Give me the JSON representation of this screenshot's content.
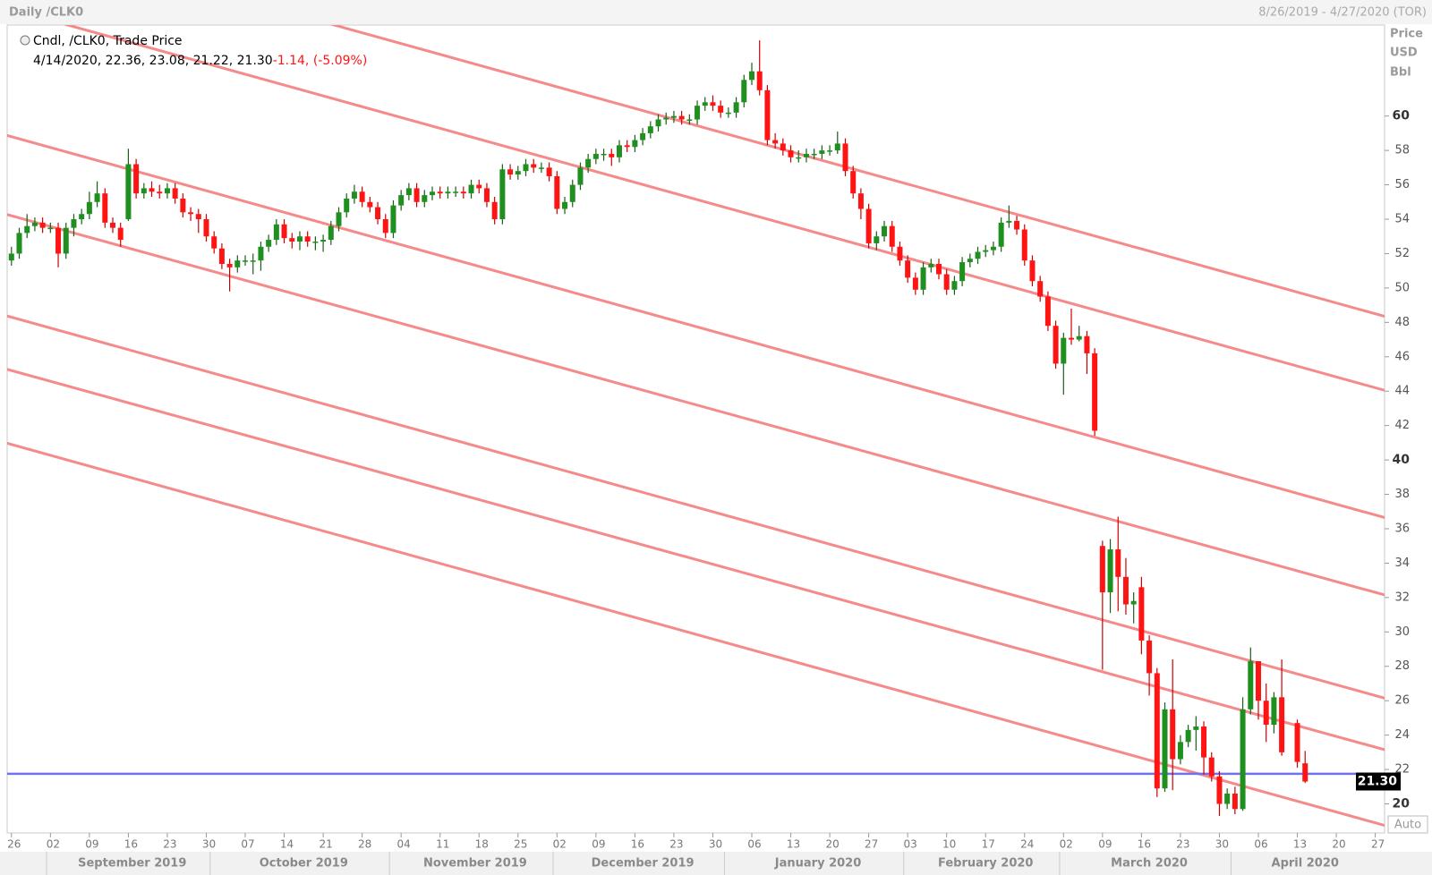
{
  "header": {
    "title": "Daily /CLK0",
    "range": "8/26/2019 - 4/27/2020 (TOR)"
  },
  "legend": {
    "title": "Cndl, /CLK0, Trade Price",
    "ohlc": "4/14/2020, 22.36, 23.08, 21.22, 21.30",
    "change": "-1.14, (-5.09%)"
  },
  "axis_label": [
    "Price",
    "USD",
    "Bbl"
  ],
  "auto_button": "Auto",
  "chart_data": {
    "type": "candlestick",
    "up_color": "#1f8f1f",
    "down_color": "#ff1414",
    "xlim": [
      "2019-08-26",
      "2020-04-27"
    ],
    "ylim": [
      18.31,
      65.29
    ],
    "yticks": [
      20,
      22,
      24,
      26,
      28,
      30,
      32,
      34,
      36,
      38,
      40,
      42,
      44,
      46,
      48,
      50,
      52,
      54,
      56,
      58,
      60
    ],
    "xticks": [
      {
        "value": "2019-08-26",
        "label": "26"
      },
      {
        "value": "2019-09-02",
        "label": "02"
      },
      {
        "value": "2019-09-09",
        "label": "09"
      },
      {
        "value": "2019-09-16",
        "label": "16"
      },
      {
        "value": "2019-09-23",
        "label": "23"
      },
      {
        "value": "2019-09-30",
        "label": "30"
      },
      {
        "value": "2019-10-07",
        "label": "07"
      },
      {
        "value": "2019-10-14",
        "label": "14"
      },
      {
        "value": "2019-10-21",
        "label": "21"
      },
      {
        "value": "2019-10-28",
        "label": "28"
      },
      {
        "value": "2019-11-04",
        "label": "04"
      },
      {
        "value": "2019-11-11",
        "label": "11"
      },
      {
        "value": "2019-11-18",
        "label": "18"
      },
      {
        "value": "2019-11-25",
        "label": "25"
      },
      {
        "value": "2019-12-02",
        "label": "02"
      },
      {
        "value": "2019-12-09",
        "label": "09"
      },
      {
        "value": "2019-12-16",
        "label": "16"
      },
      {
        "value": "2019-12-23",
        "label": "23"
      },
      {
        "value": "2019-12-30",
        "label": "30"
      },
      {
        "value": "2020-01-06",
        "label": "06"
      },
      {
        "value": "2020-01-13",
        "label": "13"
      },
      {
        "value": "2020-01-20",
        "label": "20"
      },
      {
        "value": "2020-01-27",
        "label": "27"
      },
      {
        "value": "2020-02-03",
        "label": "03"
      },
      {
        "value": "2020-02-10",
        "label": "10"
      },
      {
        "value": "2020-02-17",
        "label": "17"
      },
      {
        "value": "2020-02-24",
        "label": "24"
      },
      {
        "value": "2020-03-02",
        "label": "02"
      },
      {
        "value": "2020-03-09",
        "label": "09"
      },
      {
        "value": "2020-03-16",
        "label": "16"
      },
      {
        "value": "2020-03-23",
        "label": "23"
      },
      {
        "value": "2020-03-30",
        "label": "30"
      },
      {
        "value": "2020-04-06",
        "label": "06"
      },
      {
        "value": "2020-04-13",
        "label": "13"
      },
      {
        "value": "2020-04-20",
        "label": "20"
      },
      {
        "value": "2020-04-27",
        "label": "27"
      }
    ],
    "months": [
      {
        "value": "2019-09",
        "label": "September 2019"
      },
      {
        "value": "2019-10",
        "label": "October 2019"
      },
      {
        "value": "2019-11",
        "label": "November 2019"
      },
      {
        "value": "2019-12",
        "label": "December 2019"
      },
      {
        "value": "2020-01",
        "label": "January 2020"
      },
      {
        "value": "2020-02",
        "label": "February 2020"
      },
      {
        "value": "2020-03",
        "label": "March 2020"
      },
      {
        "value": "2020-04",
        "label": "April 2020"
      }
    ],
    "x": [
      "2019-08-26",
      "2019-08-27",
      "2019-08-28",
      "2019-08-29",
      "2019-08-30",
      "2019-09-02",
      "2019-09-03",
      "2019-09-04",
      "2019-09-05",
      "2019-09-06",
      "2019-09-09",
      "2019-09-10",
      "2019-09-11",
      "2019-09-12",
      "2019-09-13",
      "2019-09-16",
      "2019-09-17",
      "2019-09-18",
      "2019-09-19",
      "2019-09-20",
      "2019-09-23",
      "2019-09-24",
      "2019-09-25",
      "2019-09-26",
      "2019-09-27",
      "2019-09-30",
      "2019-10-01",
      "2019-10-02",
      "2019-10-03",
      "2019-10-04",
      "2019-10-07",
      "2019-10-08",
      "2019-10-09",
      "2019-10-10",
      "2019-10-11",
      "2019-10-14",
      "2019-10-15",
      "2019-10-16",
      "2019-10-17",
      "2019-10-18",
      "2019-10-21",
      "2019-10-22",
      "2019-10-23",
      "2019-10-24",
      "2019-10-25",
      "2019-10-28",
      "2019-10-29",
      "2019-10-30",
      "2019-10-31",
      "2019-11-01",
      "2019-11-04",
      "2019-11-05",
      "2019-11-06",
      "2019-11-07",
      "2019-11-08",
      "2019-11-11",
      "2019-11-12",
      "2019-11-13",
      "2019-11-14",
      "2019-11-15",
      "2019-11-18",
      "2019-11-19",
      "2019-11-20",
      "2019-11-21",
      "2019-11-22",
      "2019-11-25",
      "2019-11-26",
      "2019-11-27",
      "2019-11-28",
      "2019-11-29",
      "2019-12-02",
      "2019-12-03",
      "2019-12-04",
      "2019-12-05",
      "2019-12-06",
      "2019-12-09",
      "2019-12-10",
      "2019-12-11",
      "2019-12-12",
      "2019-12-13",
      "2019-12-16",
      "2019-12-17",
      "2019-12-18",
      "2019-12-19",
      "2019-12-20",
      "2019-12-23",
      "2019-12-24",
      "2019-12-25",
      "2019-12-26",
      "2019-12-27",
      "2019-12-30",
      "2019-12-31",
      "2020-01-01",
      "2020-01-02",
      "2020-01-03",
      "2020-01-06",
      "2020-01-07",
      "2020-01-08",
      "2020-01-09",
      "2020-01-10",
      "2020-01-13",
      "2020-01-14",
      "2020-01-15",
      "2020-01-16",
      "2020-01-17",
      "2020-01-20",
      "2020-01-21",
      "2020-01-22",
      "2020-01-23",
      "2020-01-24",
      "2020-01-27",
      "2020-01-28",
      "2020-01-29",
      "2020-01-30",
      "2020-01-31",
      "2020-02-03",
      "2020-02-04",
      "2020-02-05",
      "2020-02-06",
      "2020-02-07",
      "2020-02-10",
      "2020-02-11",
      "2020-02-12",
      "2020-02-13",
      "2020-02-14",
      "2020-02-17",
      "2020-02-18",
      "2020-02-19",
      "2020-02-20",
      "2020-02-21",
      "2020-02-24",
      "2020-02-25",
      "2020-02-26",
      "2020-02-27",
      "2020-02-28",
      "2020-03-02",
      "2020-03-03",
      "2020-03-04",
      "2020-03-05",
      "2020-03-06",
      "2020-03-09",
      "2020-03-10",
      "2020-03-11",
      "2020-03-12",
      "2020-03-13",
      "2020-03-16",
      "2020-03-17",
      "2020-03-18",
      "2020-03-19",
      "2020-03-20",
      "2020-03-23",
      "2020-03-24",
      "2020-03-25",
      "2020-03-26",
      "2020-03-27",
      "2020-03-30",
      "2020-03-31",
      "2020-04-01",
      "2020-04-02",
      "2020-04-03",
      "2020-04-06",
      "2020-04-07",
      "2020-04-08",
      "2020-04-09",
      "2020-04-13",
      "2020-04-14"
    ],
    "open": [
      51.6,
      52.0,
      53.2,
      53.6,
      53.8,
      53.5,
      53.5,
      52.0,
      53.5,
      54.0,
      54.3,
      55.0,
      55.5,
      53.8,
      53.5,
      54.0,
      57.2,
      55.5,
      55.8,
      55.6,
      55.5,
      55.8,
      55.2,
      54.4,
      54.3,
      54.0,
      53.0,
      52.3,
      51.4,
      51.2,
      51.6,
      51.6,
      51.6,
      52.4,
      52.8,
      53.7,
      52.9,
      52.7,
      53.0,
      52.7,
      52.7,
      52.8,
      53.6,
      54.4,
      55.2,
      55.6,
      55.0,
      54.7,
      54.0,
      53.2,
      54.8,
      55.4,
      55.8,
      55.0,
      55.4,
      55.6,
      55.5,
      55.6,
      55.6,
      55.5,
      56.0,
      55.8,
      55.0,
      54.0,
      56.9,
      56.6,
      56.8,
      57.2,
      57.0,
      57.0,
      56.5,
      54.6,
      55.0,
      56.0,
      57.0,
      57.5,
      57.8,
      57.8,
      57.6,
      58.3,
      58.2,
      58.6,
      59.0,
      59.4,
      59.8,
      59.9,
      60.0,
      59.8,
      59.8,
      60.6,
      60.8,
      60.6,
      60.2,
      60.2,
      60.8,
      62.1,
      62.6,
      61.5,
      58.6,
      58.4,
      58.0,
      57.6,
      57.6,
      57.8,
      57.8,
      58.0,
      58.0,
      58.4,
      56.8,
      55.5,
      54.6,
      52.6,
      53.0,
      53.6,
      52.4,
      51.6,
      50.6,
      49.9,
      51.2,
      51.4,
      50.8,
      49.9,
      50.4,
      51.5,
      51.7,
      52.1,
      52.2,
      52.4,
      53.8,
      53.9,
      53.4,
      51.6,
      50.4,
      49.5,
      47.8,
      45.6,
      47.1,
      47.0,
      47.2,
      46.2,
      35.0,
      32.3,
      34.8,
      33.2,
      31.6,
      32.6,
      29.5,
      27.6,
      20.9,
      25.5,
      22.6,
      23.6,
      24.3,
      24.5,
      22.7,
      21.6,
      20.0,
      20.6,
      19.7,
      25.5,
      28.3,
      26.0,
      24.6,
      26.2,
      24.7,
      22.36
    ],
    "high": [
      52.4,
      53.5,
      54.3,
      54.1,
      54.1,
      53.8,
      53.8,
      53.8,
      54.3,
      54.6,
      55.6,
      56.2,
      55.8,
      54.1,
      53.8,
      58.1,
      57.5,
      56.1,
      56.2,
      56.0,
      56.1,
      56.1,
      55.5,
      54.7,
      54.6,
      54.3,
      53.3,
      52.6,
      51.7,
      51.9,
      51.9,
      52.0,
      52.7,
      53.1,
      54.0,
      54.0,
      53.2,
      53.3,
      53.3,
      53.0,
      53.1,
      53.9,
      54.7,
      55.5,
      56.0,
      55.9,
      55.3,
      55.0,
      54.3,
      55.1,
      55.7,
      56.1,
      56.1,
      55.7,
      55.9,
      55.9,
      55.9,
      55.9,
      55.9,
      56.3,
      56.3,
      56.1,
      55.3,
      57.2,
      57.2,
      57.1,
      57.5,
      57.5,
      57.3,
      57.3,
      56.8,
      55.3,
      56.3,
      57.3,
      57.8,
      58.1,
      58.1,
      58.1,
      58.6,
      58.6,
      58.9,
      59.3,
      59.7,
      60.1,
      60.2,
      60.3,
      60.3,
      60.1,
      60.9,
      61.1,
      61.2,
      60.9,
      60.5,
      61.1,
      62.4,
      63.1,
      64.4,
      61.8,
      59.0,
      58.7,
      58.3,
      58.0,
      58.1,
      58.1,
      58.3,
      58.3,
      59.1,
      58.7,
      57.1,
      55.8,
      54.9,
      53.3,
      53.9,
      53.9,
      52.7,
      51.9,
      50.9,
      51.5,
      51.7,
      51.7,
      51.1,
      50.7,
      51.8,
      52.0,
      52.4,
      52.5,
      52.7,
      54.1,
      54.8,
      54.2,
      53.7,
      51.9,
      50.7,
      49.8,
      48.1,
      47.4,
      48.8,
      47.8,
      47.5,
      46.5,
      35.3,
      35.4,
      36.7,
      34.3,
      32.3,
      33.2,
      29.8,
      27.9,
      25.9,
      28.4,
      24.0,
      24.6,
      25.1,
      24.8,
      23.0,
      21.9,
      20.9,
      21.0,
      26.2,
      29.1,
      28.3,
      27.0,
      26.5,
      28.4,
      24.9,
      23.08
    ],
    "low": [
      51.3,
      51.7,
      52.9,
      53.3,
      53.2,
      53.2,
      51.2,
      51.7,
      53.0,
      53.7,
      54.0,
      54.7,
      53.5,
      53.2,
      52.4,
      53.9,
      55.2,
      55.2,
      55.3,
      55.2,
      55.2,
      54.9,
      54.1,
      53.9,
      53.2,
      52.7,
      52.0,
      51.1,
      49.8,
      50.9,
      51.3,
      50.8,
      51.0,
      52.1,
      52.5,
      52.6,
      52.3,
      52.2,
      52.4,
      52.2,
      52.1,
      52.5,
      53.3,
      54.1,
      54.9,
      54.7,
      54.4,
      53.7,
      52.9,
      52.9,
      54.5,
      55.1,
      54.7,
      54.7,
      55.1,
      55.2,
      55.2,
      55.3,
      55.2,
      55.2,
      55.5,
      54.7,
      53.7,
      53.7,
      56.3,
      56.3,
      56.5,
      56.7,
      56.7,
      56.2,
      54.3,
      54.3,
      54.7,
      55.7,
      56.7,
      57.2,
      57.4,
      57.1,
      57.3,
      57.9,
      57.9,
      58.3,
      58.7,
      59.1,
      59.5,
      59.6,
      59.5,
      59.5,
      59.5,
      60.3,
      60.3,
      59.9,
      59.9,
      59.9,
      60.5,
      61.8,
      61.2,
      58.3,
      58.1,
      57.7,
      57.3,
      57.3,
      57.3,
      57.5,
      57.5,
      57.7,
      57.8,
      56.5,
      55.2,
      54.0,
      52.3,
      52.2,
      52.7,
      52.1,
      51.3,
      50.3,
      49.6,
      49.6,
      50.9,
      50.5,
      49.6,
      49.6,
      50.1,
      51.2,
      51.4,
      51.8,
      51.9,
      52.1,
      53.5,
      53.1,
      51.3,
      50.1,
      49.2,
      47.5,
      45.3,
      43.8,
      46.7,
      46.9,
      45.0,
      41.4,
      27.8,
      31.1,
      31.2,
      31.0,
      30.5,
      28.7,
      26.3,
      20.4,
      20.7,
      20.8,
      22.3,
      23.3,
      23.1,
      21.7,
      21.3,
      19.3,
      19.7,
      19.4,
      19.6,
      25.2,
      24.9,
      23.6,
      24.1,
      22.8,
      22.1,
      21.22
    ],
    "close": [
      52.0,
      53.2,
      53.6,
      53.8,
      53.5,
      53.5,
      52.0,
      53.5,
      54.0,
      54.3,
      55.0,
      55.5,
      53.8,
      53.5,
      52.8,
      57.2,
      55.5,
      55.8,
      55.6,
      55.5,
      55.8,
      55.2,
      54.4,
      54.3,
      54.0,
      53.0,
      52.3,
      51.4,
      51.2,
      51.6,
      51.6,
      51.6,
      52.4,
      52.8,
      53.7,
      52.9,
      52.7,
      53.0,
      52.7,
      52.7,
      52.8,
      53.6,
      54.4,
      55.2,
      55.6,
      55.0,
      54.7,
      54.0,
      53.2,
      54.8,
      55.4,
      55.8,
      55.0,
      55.4,
      55.6,
      55.5,
      55.6,
      55.6,
      55.5,
      56.0,
      55.8,
      55.0,
      54.0,
      56.9,
      56.6,
      56.8,
      57.2,
      57.0,
      57.0,
      56.5,
      54.6,
      55.0,
      56.0,
      57.0,
      57.5,
      57.8,
      57.8,
      57.6,
      58.3,
      58.2,
      58.6,
      59.0,
      59.4,
      59.8,
      59.9,
      60.0,
      59.8,
      59.8,
      60.6,
      60.8,
      60.6,
      60.2,
      60.2,
      60.8,
      62.1,
      62.6,
      61.5,
      58.6,
      58.4,
      58.0,
      57.6,
      57.6,
      57.8,
      57.8,
      58.0,
      58.0,
      58.4,
      56.8,
      55.5,
      54.6,
      52.6,
      53.0,
      53.6,
      52.4,
      51.6,
      50.6,
      49.9,
      51.2,
      51.4,
      50.8,
      49.9,
      50.4,
      51.5,
      51.7,
      52.1,
      52.2,
      52.4,
      53.8,
      53.9,
      53.4,
      51.6,
      50.4,
      49.5,
      47.8,
      45.6,
      47.1,
      47.0,
      47.2,
      46.2,
      41.7,
      32.3,
      34.8,
      33.2,
      31.6,
      31.8,
      29.5,
      27.6,
      20.9,
      25.5,
      22.6,
      23.6,
      24.3,
      24.5,
      22.7,
      21.6,
      20.0,
      20.6,
      19.7,
      25.5,
      28.3,
      26.0,
      24.6,
      26.2,
      23.0,
      22.44,
      21.3
    ],
    "trendline_color": "#f58a8a",
    "trendlines": [
      {
        "start": [
          "2019-08-26",
          70.5
        ],
        "end": [
          "2020-04-27",
          48.5
        ]
      },
      {
        "start": [
          "2019-08-26",
          66.2
        ],
        "end": [
          "2020-04-27",
          44.2
        ]
      },
      {
        "start": [
          "2019-08-26",
          58.8
        ],
        "end": [
          "2020-04-27",
          36.8
        ]
      },
      {
        "start": [
          "2019-08-26",
          54.2
        ],
        "end": [
          "2020-04-27",
          32.3
        ]
      },
      {
        "start": [
          "2019-08-26",
          48.3
        ],
        "end": [
          "2020-04-27",
          26.3
        ]
      },
      {
        "start": [
          "2019-08-26",
          45.2
        ],
        "end": [
          "2020-04-27",
          23.3
        ]
      },
      {
        "start": [
          "2019-08-26",
          40.9
        ],
        "end": [
          "2020-04-27",
          18.9
        ]
      }
    ],
    "horizontal_line": {
      "value": 21.75,
      "color": "#7070f0"
    },
    "last_price": {
      "value": 21.3,
      "label": "21.30"
    }
  }
}
